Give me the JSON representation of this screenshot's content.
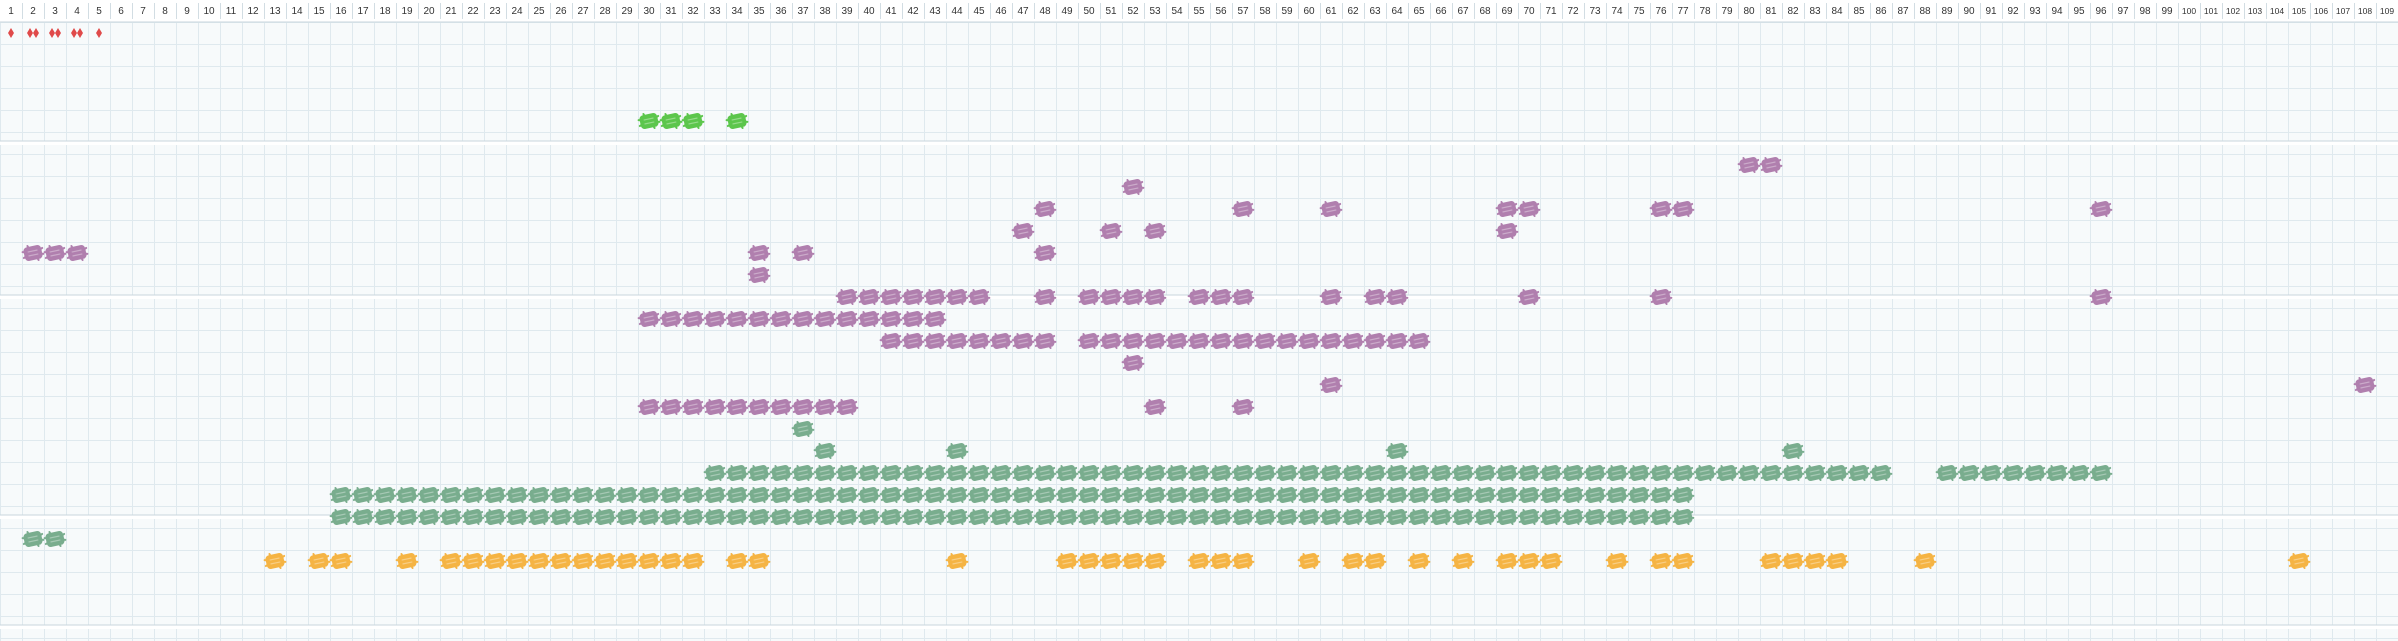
{
  "chart_data": {
    "type": "scatter",
    "title": "",
    "xlabel": "",
    "ylabel": "",
    "x_columns": 109,
    "x_tick_labels": [
      "1",
      "2",
      "3",
      "4",
      "5",
      "6",
      "7",
      "8",
      "9",
      "10",
      "11",
      "12",
      "13",
      "14",
      "15",
      "16",
      "17",
      "18",
      "19",
      "20",
      "21",
      "22",
      "23",
      "24",
      "25",
      "26",
      "27",
      "28",
      "29",
      "30",
      "31",
      "32",
      "33",
      "34",
      "35",
      "36",
      "37",
      "38",
      "39",
      "40",
      "41",
      "42",
      "43",
      "44",
      "45",
      "46",
      "47",
      "48",
      "49",
      "50",
      "51",
      "52",
      "53",
      "54",
      "55",
      "56",
      "57",
      "58",
      "59",
      "60",
      "61",
      "62",
      "63",
      "64",
      "65",
      "66",
      "67",
      "68",
      "69",
      "70",
      "71",
      "72",
      "73",
      "74",
      "75",
      "76",
      "77",
      "78",
      "79",
      "80",
      "81",
      "82",
      "83",
      "84",
      "85",
      "86",
      "87",
      "88",
      "89",
      "90",
      "91",
      "92",
      "93",
      "94",
      "95",
      "96",
      "97",
      "98",
      "99",
      "100",
      "101",
      "102",
      "103",
      "104",
      "105",
      "106",
      "107",
      "108",
      "109"
    ],
    "colors": {
      "red": "#e04a4a",
      "green": "#5cc64c",
      "purple": "#b07fae",
      "teal": "#79ad8e",
      "orange": "#f5b444",
      "grid": "#dfe9ee",
      "band_separator": "#c8d6dd",
      "background": "#f7fafb"
    },
    "series": [
      {
        "color": "red",
        "kind": "diamond",
        "rows": [
          {
            "cols": [
              1,
              2,
              2,
              3,
              3,
              4,
              4,
              5
            ]
          }
        ]
      },
      {
        "color": "green",
        "kind": "blob",
        "rows": [
          {
            "cols": [
              30,
              31,
              32,
              34
            ]
          }
        ]
      },
      {
        "color": "purple",
        "kind": "blob",
        "rows": [
          {
            "cols": [
              80,
              81
            ]
          },
          {
            "cols": [
              52
            ]
          },
          {
            "cols": [
              48,
              57,
              61,
              69,
              70,
              76,
              77,
              96
            ]
          },
          {
            "cols": [
              47,
              51,
              53,
              69
            ]
          },
          {
            "cols": [
              2,
              3,
              4,
              35,
              37,
              48
            ]
          },
          {
            "cols": [
              35
            ]
          },
          {
            "cols": [
              39,
              40,
              41,
              42,
              43,
              44,
              45,
              48,
              50,
              51,
              52,
              53,
              55,
              56,
              57,
              61,
              63,
              64,
              70,
              76,
              96
            ]
          },
          {
            "cols": [
              30,
              31,
              32,
              33,
              34,
              35,
              36,
              37,
              38,
              39,
              40,
              41,
              42,
              43
            ]
          },
          {
            "cols": [
              41,
              42,
              43,
              44,
              45,
              46,
              47,
              48,
              50,
              51,
              52,
              53,
              54,
              55,
              56,
              57,
              58,
              59,
              60,
              61,
              62,
              63,
              64,
              65
            ]
          },
          {
            "cols": [
              52
            ]
          },
          {
            "cols": [
              61,
              108
            ]
          },
          {
            "cols": [
              30,
              31,
              32,
              33,
              34,
              35,
              36,
              37,
              38,
              39,
              53,
              57
            ]
          }
        ]
      },
      {
        "color": "teal",
        "kind": "blob",
        "rows": [
          {
            "cols": [
              37
            ]
          },
          {
            "cols": [
              38,
              44,
              64,
              82
            ]
          },
          {
            "range": [
              33,
              86
            ],
            "plus": [
              89,
              90,
              91,
              92,
              93,
              94,
              95,
              96
            ]
          },
          {
            "range": [
              16,
              77
            ]
          },
          {
            "range": [
              16,
              77
            ]
          },
          {
            "cols": [
              2,
              3
            ]
          }
        ]
      },
      {
        "color": "orange",
        "kind": "blob",
        "rows": [
          {
            "cols": [
              13,
              15,
              16,
              19,
              21,
              22,
              23,
              24,
              25,
              26,
              27,
              28,
              29,
              30,
              31,
              32,
              34,
              35,
              44,
              49,
              50,
              51,
              52,
              53,
              55,
              56,
              57,
              60,
              62,
              63,
              65,
              67,
              69,
              70,
              71,
              74,
              76,
              77,
              81,
              82,
              83,
              84,
              88,
              105
            ]
          }
        ]
      }
    ]
  }
}
